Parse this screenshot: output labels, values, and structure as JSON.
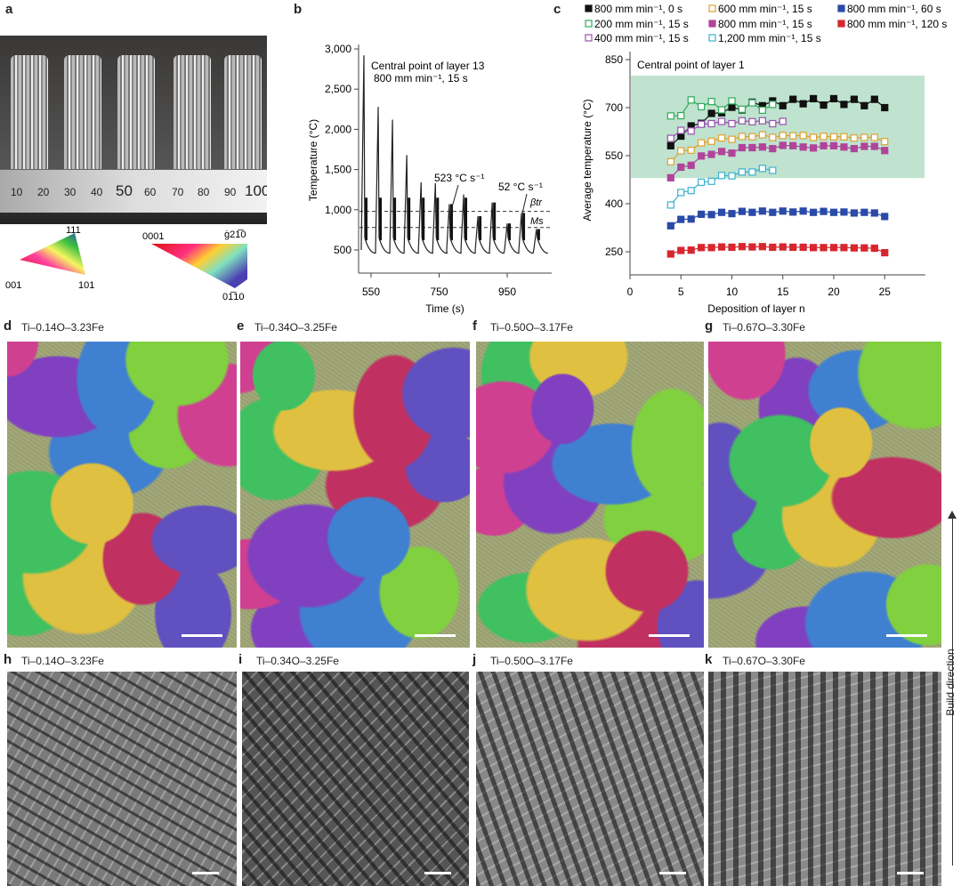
{
  "panels": {
    "a": {
      "label": "a",
      "ruler_labels": [
        "10",
        "20",
        "30",
        "40",
        "50",
        "60",
        "70",
        "80",
        "90",
        "100"
      ],
      "ipf_cubic": {
        "top": "111",
        "left": "001",
        "right": "101"
      },
      "ipf_hex": {
        "left": "0001",
        "right": "ġ21̅0",
        "bottom": "01̅10"
      }
    },
    "b": {
      "label": "b"
    },
    "c": {
      "label": "c"
    },
    "d": {
      "label": "d",
      "title": "Ti–0.14O–3.23Fe"
    },
    "e": {
      "label": "e",
      "title": "Ti–0.34O–3.25Fe"
    },
    "f": {
      "label": "f",
      "title": "Ti–0.50O–3.17Fe"
    },
    "g": {
      "label": "g",
      "title": "Ti–0.67O–3.30Fe"
    },
    "h": {
      "label": "h",
      "title": "Ti–0.14O–3.23Fe"
    },
    "i": {
      "label": "i",
      "title": "Ti–0.34O–3.25Fe"
    },
    "j": {
      "label": "j",
      "title": "Ti–0.50O–3.17Fe"
    },
    "k": {
      "label": "k",
      "title": "Ti–0.67O–3.30Fe"
    }
  },
  "build_direction": "Build direction",
  "chart_data": [
    {
      "type": "line",
      "panel": "b",
      "xlabel": "Time (s)",
      "ylabel": "Temperature (°C)",
      "xticks": [
        550,
        750,
        950
      ],
      "yticks": [
        500,
        1000,
        1500,
        2000,
        2500,
        3000
      ],
      "ytick_labels": [
        "500",
        "1,000",
        "1,500",
        "2,000",
        "2,500",
        "3,000"
      ],
      "xlim": [
        515,
        1080
      ],
      "ylim": [
        200,
        3050
      ],
      "annotations": [
        "Central point of layer 13",
        "800 mm min⁻¹, 15 s",
        "523 °C s⁻¹",
        "52 °C s⁻¹",
        "βtr",
        "Ms"
      ],
      "reference_lines": {
        "beta_tr": 980,
        "Ms": 780
      },
      "peaks": {
        "time": [
          529,
          571,
          613,
          655,
          697,
          739,
          780,
          822,
          864,
          906,
          950,
          992,
          1036
        ],
        "temp": [
          2920,
          2280,
          2120,
          1680,
          1340,
          1330,
          1070,
          1190,
          920,
          1090,
          830,
          960,
          760
        ]
      },
      "minimum_temp": 460
    },
    {
      "type": "line",
      "panel": "c",
      "xlabel": "Deposition of layer n",
      "ylabel": "Average temperature (°C)",
      "annotation": "Central point of layer 1",
      "shaded_band": [
        480,
        800
      ],
      "band_color": "#bfe3cf",
      "xlim": [
        0,
        29
      ],
      "ylim": [
        150,
        870
      ],
      "xticks": [
        0,
        5,
        10,
        15,
        20,
        25
      ],
      "yticks": [
        250,
        400,
        550,
        700,
        850
      ],
      "series": [
        {
          "name": "800 mm min⁻¹, 0 s",
          "color": "#111111",
          "filled": true,
          "x": [
            4,
            5,
            6,
            7,
            8,
            9,
            10,
            11,
            12,
            13,
            14,
            15,
            16,
            17,
            18,
            19,
            20,
            21,
            22,
            23,
            24,
            25
          ],
          "values": [
            581,
            611,
            643,
            651,
            682,
            684,
            701,
            693,
            717,
            706,
            721,
            706,
            726,
            712,
            728,
            708,
            728,
            710,
            726,
            706,
            726,
            700
          ]
        },
        {
          "name": "200 mm min⁻¹, 15 s",
          "color": "#2eaa5a",
          "filled": false,
          "x": [
            4,
            5,
            6,
            7,
            8,
            9,
            10,
            11,
            12,
            13,
            14
          ],
          "values": [
            674,
            675,
            724,
            703,
            719,
            693,
            721,
            695,
            715,
            692,
            710
          ]
        },
        {
          "name": "400 mm min⁻¹, 15 s",
          "color": "#9a4fb0",
          "filled": false,
          "x": [
            4,
            5,
            6,
            7,
            8,
            9,
            10,
            11,
            12,
            13,
            14,
            15
          ],
          "values": [
            604,
            629,
            627,
            648,
            650,
            657,
            650,
            659,
            656,
            659,
            650,
            657
          ]
        },
        {
          "name": "600 mm min⁻¹, 15 s",
          "color": "#e0a030",
          "filled": false,
          "x": [
            4,
            5,
            6,
            7,
            8,
            9,
            10,
            11,
            12,
            13,
            14,
            15,
            16,
            17,
            18,
            19,
            20,
            21,
            22,
            23,
            24,
            25
          ],
          "values": [
            531,
            565,
            567,
            590,
            595,
            605,
            601,
            610,
            609,
            615,
            607,
            613,
            612,
            613,
            607,
            610,
            609,
            609,
            605,
            607,
            607,
            594
          ]
        },
        {
          "name": "800 mm min⁻¹, 15 s",
          "color": "#b0449a",
          "filled": true,
          "x": [
            4,
            5,
            6,
            7,
            8,
            9,
            10,
            11,
            12,
            13,
            14,
            15,
            16,
            17,
            18,
            19,
            20,
            21,
            22,
            23,
            24,
            25
          ],
          "values": [
            481,
            514,
            520,
            549,
            554,
            563,
            558,
            575,
            575,
            577,
            572,
            582,
            581,
            577,
            574,
            581,
            581,
            577,
            572,
            579,
            579,
            566
          ]
        },
        {
          "name": "1,200 mm min⁻¹, 15 s",
          "color": "#3bb0d0",
          "filled": false,
          "x": [
            4,
            5,
            6,
            7,
            8,
            9,
            10,
            11,
            12,
            13,
            14
          ],
          "values": [
            396,
            435,
            441,
            467,
            470,
            488,
            487,
            499,
            499,
            510,
            504
          ]
        },
        {
          "name": "800 mm min⁻¹, 60 s",
          "color": "#2a4aa8",
          "filled": true,
          "x": [
            4,
            5,
            6,
            7,
            8,
            9,
            10,
            11,
            12,
            13,
            14,
            15,
            16,
            17,
            18,
            19,
            20,
            21,
            22,
            23,
            24,
            25
          ],
          "values": [
            331,
            351,
            352,
            367,
            366,
            373,
            369,
            376,
            373,
            377,
            373,
            377,
            374,
            377,
            373,
            376,
            373,
            374,
            371,
            373,
            371,
            360
          ]
        },
        {
          "name": "800 mm min⁻¹, 120 s",
          "color": "#d8262e",
          "filled": true,
          "x": [
            4,
            5,
            6,
            7,
            8,
            9,
            10,
            11,
            12,
            13,
            14,
            15,
            16,
            17,
            18,
            19,
            20,
            21,
            22,
            23,
            24,
            25
          ],
          "values": [
            243,
            254,
            255,
            263,
            263,
            265,
            264,
            266,
            265,
            266,
            264,
            265,
            264,
            264,
            263,
            263,
            263,
            263,
            262,
            262,
            261,
            247
          ]
        }
      ]
    }
  ]
}
